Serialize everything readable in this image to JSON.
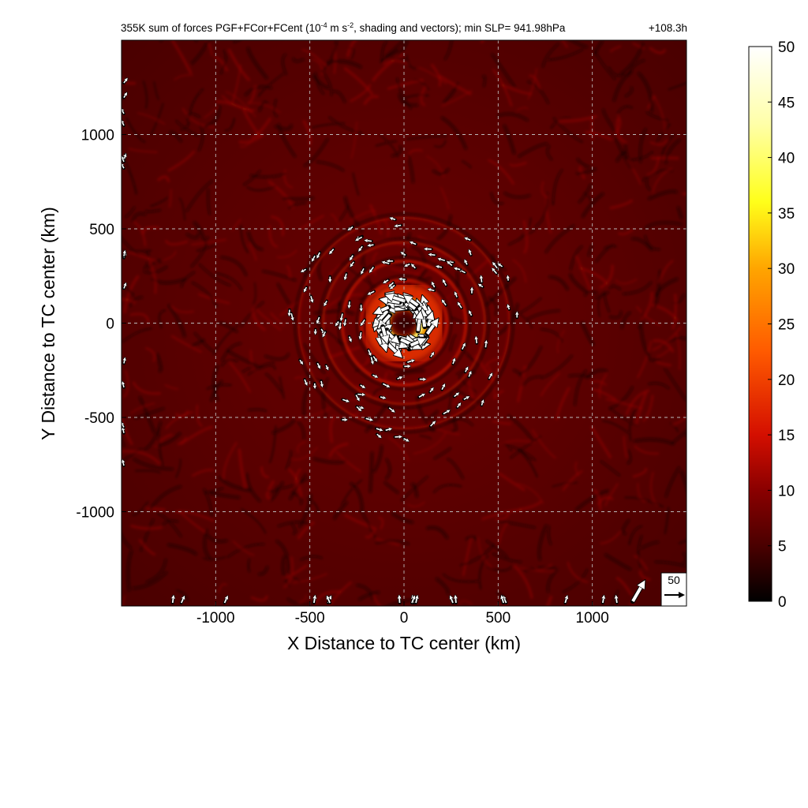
{
  "chart_data": {
    "type": "heatmap",
    "title": {
      "main": "355K sum of forces PGF+FCor+FCent (10",
      "exp1": "-4",
      "mid": " m s",
      "exp2": "-2",
      "tail": ", shading and vectors); min SLP= 941.98hPa",
      "time": "+108.3h"
    },
    "xlabel": "X Distance to TC center (km)",
    "ylabel": "Y Distance to TC center (km)",
    "xlim": [
      -1500,
      1500
    ],
    "ylim": [
      -1500,
      1500
    ],
    "xticks": [
      -1000,
      -500,
      0,
      500,
      1000
    ],
    "yticks": [
      -1000,
      -500,
      0,
      500,
      1000
    ],
    "grid": true,
    "colorbar": {
      "min": 0,
      "max": 50,
      "ticks": [
        0,
        5,
        10,
        15,
        20,
        25,
        30,
        35,
        40,
        45,
        50
      ],
      "colormap": [
        "#000000",
        "#5a0000",
        "#a00000",
        "#e01a00",
        "#ff6a00",
        "#ffb000",
        "#ffff1a",
        "#ffffb0",
        "#ffffff"
      ]
    },
    "reference_vector": {
      "label": "50",
      "value": 50
    },
    "field_features": {
      "background_level": 6,
      "eyewall_ring": {
        "radius_km": 110,
        "peak_value": 50
      },
      "outer_bands_km": [
        230,
        330,
        430,
        560
      ]
    }
  }
}
